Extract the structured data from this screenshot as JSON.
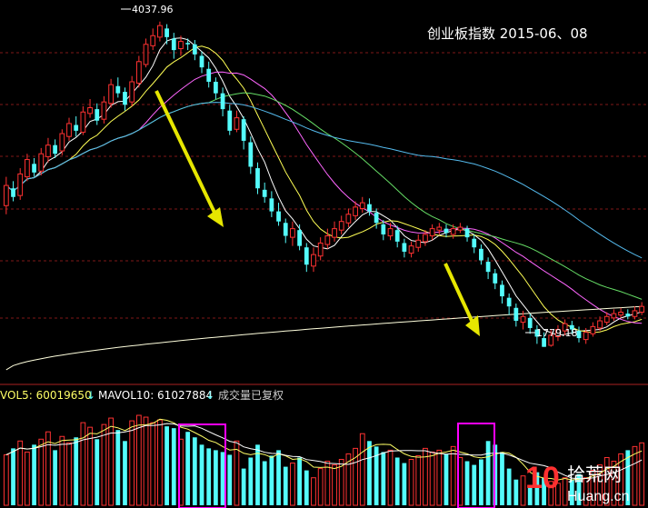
{
  "chart_data": {
    "type": "candlestick",
    "title": "创业板指数 2015-06、08",
    "price": {
      "high_label": "4037.96",
      "low_label": "1779.18",
      "ylim": [
        1550,
        4150
      ],
      "grid": true,
      "candles": [
        [
          2760,
          2900,
          2700,
          2960
        ],
        [
          2880,
          2820,
          2790,
          2930
        ],
        [
          2830,
          2980,
          2800,
          3020
        ],
        [
          2960,
          3080,
          2930,
          3120
        ],
        [
          3050,
          2990,
          2960,
          3090
        ],
        [
          3000,
          3120,
          2970,
          3160
        ],
        [
          3100,
          3180,
          3060,
          3230
        ],
        [
          3180,
          3120,
          3090,
          3220
        ],
        [
          3140,
          3260,
          3110,
          3290
        ],
        [
          3240,
          3330,
          3210,
          3370
        ],
        [
          3320,
          3280,
          3240,
          3380
        ],
        [
          3270,
          3410,
          3250,
          3450
        ],
        [
          3400,
          3440,
          3370,
          3500
        ],
        [
          3430,
          3350,
          3320,
          3470
        ],
        [
          3360,
          3480,
          3330,
          3520
        ],
        [
          3470,
          3600,
          3440,
          3640
        ],
        [
          3590,
          3540,
          3510,
          3650
        ],
        [
          3550,
          3460,
          3420,
          3580
        ],
        [
          3480,
          3620,
          3450,
          3660
        ],
        [
          3610,
          3760,
          3580,
          3800
        ],
        [
          3740,
          3880,
          3720,
          3920
        ],
        [
          3870,
          3940,
          3840,
          3990
        ],
        [
          3930,
          4010,
          3900,
          4037.96
        ],
        [
          3990,
          3930,
          3880,
          4020
        ],
        [
          3920,
          3840,
          3780,
          3960
        ],
        [
          3850,
          3900,
          3800,
          3940
        ],
        [
          3890,
          3880,
          3840,
          3920
        ],
        [
          3880,
          3810,
          3770,
          3910
        ],
        [
          3800,
          3720,
          3680,
          3830
        ],
        [
          3710,
          3620,
          3580,
          3760
        ],
        [
          3620,
          3540,
          3500,
          3650
        ],
        [
          3540,
          3430,
          3380,
          3580
        ],
        [
          3420,
          3280,
          3250,
          3460
        ],
        [
          3290,
          3370,
          3270,
          3420
        ],
        [
          3360,
          3210,
          3150,
          3380
        ],
        [
          3200,
          3030,
          2980,
          3240
        ],
        [
          3020,
          2880,
          2840,
          3060
        ],
        [
          2870,
          2820,
          2780,
          2920
        ],
        [
          2810,
          2720,
          2680,
          2860
        ],
        [
          2720,
          2650,
          2620,
          2780
        ],
        [
          2640,
          2550,
          2500,
          2670
        ],
        [
          2540,
          2600,
          2480,
          2650
        ],
        [
          2590,
          2480,
          2450,
          2630
        ],
        [
          2470,
          2350,
          2300,
          2500
        ],
        [
          2340,
          2420,
          2300,
          2470
        ],
        [
          2410,
          2500,
          2380,
          2540
        ],
        [
          2490,
          2550,
          2460,
          2600
        ],
        [
          2540,
          2600,
          2510,
          2650
        ],
        [
          2590,
          2650,
          2560,
          2690
        ],
        [
          2640,
          2700,
          2610,
          2740
        ],
        [
          2690,
          2750,
          2660,
          2790
        ],
        [
          2740,
          2780,
          2710,
          2820
        ],
        [
          2770,
          2720,
          2690,
          2810
        ],
        [
          2710,
          2640,
          2600,
          2740
        ],
        [
          2630,
          2560,
          2520,
          2660
        ],
        [
          2550,
          2600,
          2520,
          2640
        ],
        [
          2590,
          2510,
          2470,
          2620
        ],
        [
          2500,
          2440,
          2400,
          2530
        ],
        [
          2430,
          2480,
          2400,
          2510
        ],
        [
          2470,
          2520,
          2440,
          2560
        ],
        [
          2510,
          2560,
          2480,
          2590
        ],
        [
          2550,
          2600,
          2520,
          2630
        ],
        [
          2590,
          2610,
          2560,
          2640
        ],
        [
          2600,
          2570,
          2540,
          2630
        ],
        [
          2560,
          2600,
          2530,
          2630
        ],
        [
          2590,
          2610,
          2570,
          2640
        ],
        [
          2600,
          2540,
          2510,
          2620
        ],
        [
          2530,
          2470,
          2430,
          2560
        ],
        [
          2460,
          2380,
          2350,
          2490
        ],
        [
          2370,
          2300,
          2250,
          2400
        ],
        [
          2290,
          2220,
          2180,
          2320
        ],
        [
          2210,
          2130,
          2080,
          2240
        ],
        [
          2120,
          2060,
          2000,
          2150
        ],
        [
          2050,
          1960,
          1920,
          2080
        ],
        [
          1950,
          1990,
          1900,
          2030
        ],
        [
          1980,
          1910,
          1870,
          2010
        ],
        [
          1900,
          1850,
          1800,
          1930
        ],
        [
          1840,
          1779.18,
          1779.18,
          1880
        ],
        [
          1790,
          1860,
          1780,
          1900
        ],
        [
          1850,
          1900,
          1820,
          1930
        ],
        [
          1890,
          1940,
          1860,
          1970
        ],
        [
          1930,
          1900,
          1870,
          1960
        ],
        [
          1890,
          1840,
          1810,
          1920
        ],
        [
          1830,
          1880,
          1800,
          1910
        ],
        [
          1870,
          1920,
          1850,
          1950
        ],
        [
          1910,
          1960,
          1890,
          1990
        ],
        [
          1950,
          1990,
          1930,
          2020
        ],
        [
          1980,
          2010,
          1960,
          2040
        ],
        [
          2000,
          2020,
          1980,
          2050
        ],
        [
          2010,
          1990,
          1970,
          2040
        ],
        [
          1990,
          2030,
          1970,
          2060
        ],
        [
          2020,
          2060,
          2000,
          2090
        ]
      ]
    },
    "volume": {
      "header": {
        "vol5_label": "VOL5: 60019650",
        "mavol10_label": "MAVOL10: 61027884",
        "note": "成交量已复权"
      },
      "values": [
        55,
        62,
        70,
        58,
        66,
        72,
        80,
        60,
        75,
        68,
        74,
        90,
        85,
        72,
        88,
        95,
        82,
        70,
        92,
        98,
        96,
        90,
        93,
        86,
        84,
        72,
        80,
        74,
        66,
        62,
        60,
        58,
        55,
        70,
        40,
        52,
        66,
        48,
        54,
        60,
        42,
        46,
        52,
        38,
        30,
        40,
        48,
        44,
        50,
        56,
        62,
        78,
        70,
        64,
        58,
        60,
        52,
        46,
        50,
        54,
        62,
        58,
        60,
        56,
        64,
        52,
        48,
        44,
        50,
        70,
        66,
        58,
        40,
        28,
        32,
        22,
        36,
        30,
        26,
        24,
        30,
        28,
        34,
        30,
        38,
        44,
        52,
        48,
        56,
        60,
        64,
        68
      ],
      "colors": [
        "cyan",
        "red"
      ]
    },
    "annotations": [
      "4037.96",
      "1779.18"
    ]
  },
  "watermark": {
    "digits": "10",
    "text_cn": "拾荒网",
    "text_en": "Huang.cn"
  },
  "colors": {
    "up": "#ff3232",
    "down": "#54fcfc",
    "grid": "#7f1919",
    "highlight": "#ff00ff",
    "arrow": "#e6e600"
  }
}
